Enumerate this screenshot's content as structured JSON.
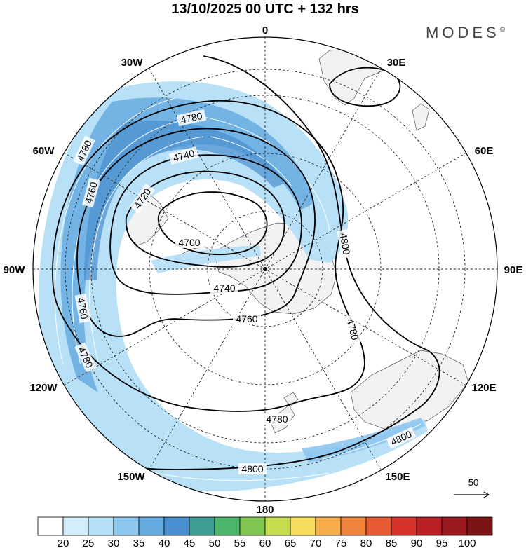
{
  "header": {
    "title": "13/10/2025  00 UTC  + 132 hrs",
    "brand": "MODES",
    "brand_mark": "©"
  },
  "map": {
    "projection": "south-polar-stereographic",
    "longitude_labels": [
      "0",
      "30E",
      "60E",
      "90E",
      "120E",
      "150E",
      "180",
      "150W",
      "120W",
      "90W",
      "60W",
      "30W"
    ],
    "contours": [
      {
        "value": 4700,
        "labels": [
          "4700"
        ]
      },
      {
        "value": 4720,
        "labels": [
          "4720"
        ]
      },
      {
        "value": 4740,
        "labels": [
          "4740",
          "4740"
        ]
      },
      {
        "value": 4760,
        "labels": [
          "4760",
          "4760",
          "4760"
        ]
      },
      {
        "value": 4780,
        "labels": [
          "4780",
          "4780",
          "4780",
          "4780",
          "4780"
        ]
      },
      {
        "value": 4800,
        "labels": [
          "4800",
          "4800",
          "4800"
        ]
      }
    ],
    "vector_reference": {
      "value": "50"
    }
  },
  "legend": {
    "colors": [
      "#ffffff",
      "#d4edfb",
      "#b4dff7",
      "#8ec7ee",
      "#66abe0",
      "#4a8fcf",
      "#3f9e93",
      "#4bb56a",
      "#7fc752",
      "#c5dc4e",
      "#f6dc5a",
      "#f5ac4a",
      "#f0833b",
      "#e85a33",
      "#d8332b",
      "#bb1f26",
      "#9b1a1f",
      "#7c1416"
    ],
    "tick_labels": [
      "20",
      "25",
      "30",
      "35",
      "40",
      "45",
      "50",
      "55",
      "60",
      "65",
      "70",
      "75",
      "80",
      "85",
      "90",
      "95",
      "100"
    ]
  }
}
